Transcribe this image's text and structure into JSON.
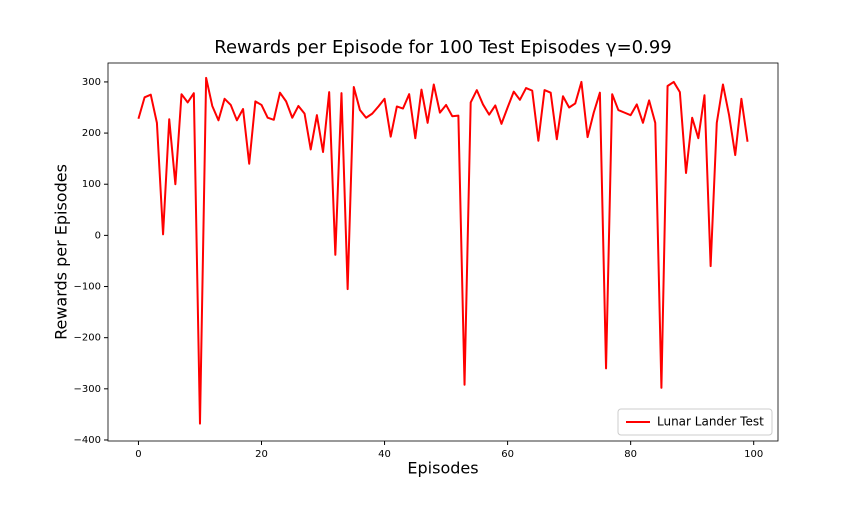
{
  "chart_data": {
    "type": "line",
    "title": "Rewards per Episode for 100 Test Episodes γ=0.99",
    "x_label": "Episodes",
    "y_label": "Rewards per Episodes",
    "x": [
      0,
      1,
      2,
      3,
      4,
      5,
      6,
      7,
      8,
      9,
      10,
      11,
      12,
      13,
      14,
      15,
      16,
      17,
      18,
      19,
      20,
      21,
      22,
      23,
      24,
      25,
      26,
      27,
      28,
      29,
      30,
      31,
      32,
      33,
      34,
      35,
      36,
      37,
      38,
      39,
      40,
      41,
      42,
      43,
      44,
      45,
      46,
      47,
      48,
      49,
      50,
      51,
      52,
      53,
      54,
      55,
      56,
      57,
      58,
      59,
      60,
      61,
      62,
      63,
      64,
      65,
      66,
      67,
      68,
      69,
      70,
      71,
      72,
      73,
      74,
      75,
      76,
      77,
      78,
      79,
      80,
      81,
      82,
      83,
      84,
      85,
      86,
      87,
      88,
      89,
      90,
      91,
      92,
      93,
      94,
      95,
      96,
      97,
      98,
      99
    ],
    "series": [
      {
        "name": "Lunar Lander Test",
        "color": "#ff0000",
        "values": [
          228,
          270,
          275,
          220,
          2,
          227,
          100,
          276,
          260,
          278,
          -368,
          308,
          253,
          225,
          267,
          255,
          225,
          247,
          140,
          262,
          255,
          230,
          226,
          279,
          262,
          230,
          253,
          238,
          168,
          235,
          163,
          280,
          -38,
          278,
          -105,
          290,
          245,
          230,
          238,
          252,
          267,
          193,
          252,
          248,
          276,
          190,
          285,
          220,
          295,
          240,
          255,
          233,
          234,
          -292,
          260,
          284,
          256,
          236,
          254,
          218,
          250,
          281,
          265,
          288,
          283,
          185,
          284,
          279,
          188,
          272,
          250,
          258,
          300,
          192,
          240,
          279,
          -260,
          276,
          245,
          240,
          235,
          256,
          220,
          264,
          220,
          -298,
          292,
          300,
          280,
          122,
          230,
          190,
          274,
          -60,
          220,
          295,
          235,
          157,
          267,
          183
        ]
      }
    ],
    "xlim": [
      -4.95,
      103.95
    ],
    "xticks": [
      0,
      20,
      40,
      60,
      80,
      100
    ],
    "ylim": [
      -402,
      337
    ],
    "yticks": [
      {
        "value": -400,
        "label": "−400"
      },
      {
        "value": -300,
        "label": "−300"
      },
      {
        "value": -200,
        "label": "−200"
      },
      {
        "value": -100,
        "label": "−100"
      },
      0,
      100,
      200,
      300
    ],
    "legend": "lower right"
  }
}
